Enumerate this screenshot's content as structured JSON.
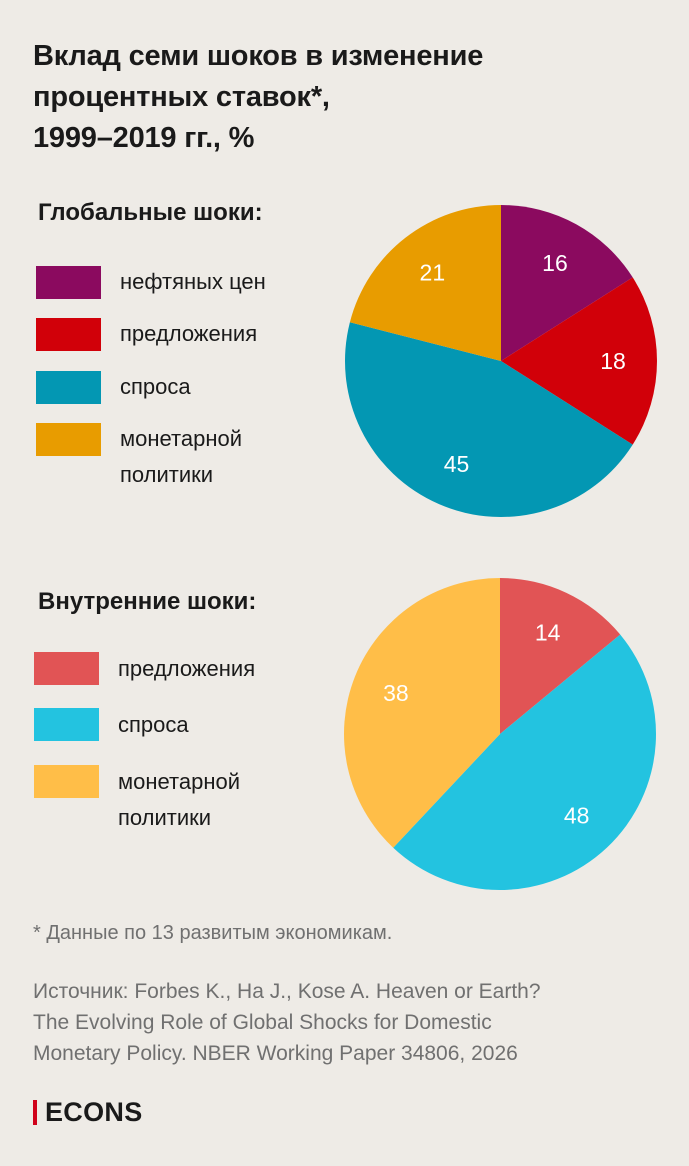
{
  "header": {
    "title_lines": [
      "Вклад семи шоков в изменение",
      "процентных ставок*,",
      "1999–2019 гг., %"
    ]
  },
  "chart_data": [
    {
      "type": "pie",
      "title": "Глобальные шоки:",
      "unit": "%",
      "slices": [
        {
          "label": "нефтяных цен",
          "value": 16,
          "color": "#8b0a5f"
        },
        {
          "label": "предложения",
          "value": 18,
          "color": "#d10009"
        },
        {
          "label": "спроса",
          "value": 45,
          "color": "#0397b3"
        },
        {
          "label": "монетарной политики",
          "label_lines": [
            "монетарной",
            "политики"
          ],
          "value": 21,
          "color": "#e89c00"
        }
      ],
      "start": "12 o'clock",
      "direction": "clockwise"
    },
    {
      "type": "pie",
      "title": "Внутренние шоки:",
      "unit": "%",
      "slices": [
        {
          "label": "предложения",
          "value": 14,
          "color": "#e15455"
        },
        {
          "label": "спроса",
          "value": 48,
          "color": "#23c3e0"
        },
        {
          "label": "монетарной политики",
          "label_lines": [
            "монетарной",
            "политики"
          ],
          "value": 38,
          "color": "#ffbe48"
        }
      ],
      "start": "12 o'clock",
      "direction": "clockwise"
    }
  ],
  "footnote": "* Данные по 13 развитым экономикам.",
  "source_lines": [
    "Источник: Forbes K., Ha J., Kose A. Heaven or Earth?",
    "The Evolving Role of Global Shocks for Domestic",
    "Monetary Policy. NBER Working Paper 34806, 2026"
  ],
  "brand": "ECONS"
}
